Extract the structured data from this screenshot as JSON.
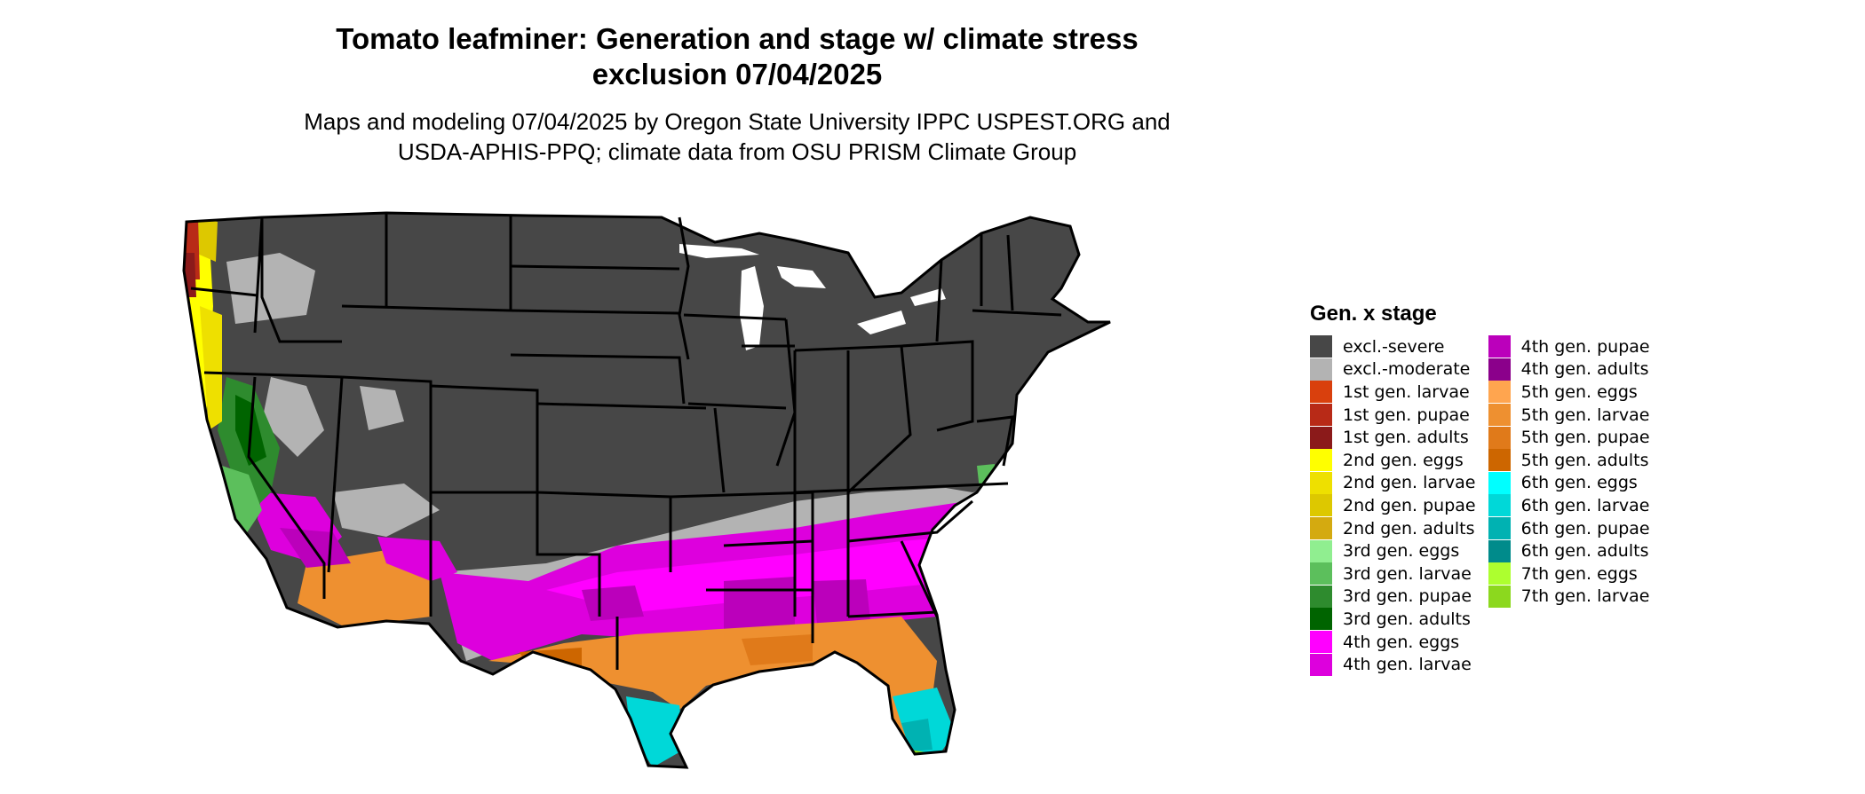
{
  "title": {
    "line1": "Tomato leafminer: Generation and stage w/ climate stress",
    "line2": "exclusion 07/04/2025"
  },
  "subtitle": {
    "line1": "Maps and modeling 07/04/2025 by Oregon State University IPPC USPEST.ORG and",
    "line2": "USDA-APHIS-PPQ; climate data from OSU PRISM Climate Group"
  },
  "legend": {
    "title": "Gen. x stage",
    "items": [
      {
        "label": "excl.-severe",
        "color": "#474747"
      },
      {
        "label": "excl.-moderate",
        "color": "#b3b3b3"
      },
      {
        "label": "1st gen. larvae",
        "color": "#d9400d"
      },
      {
        "label": "1st gen. pupae",
        "color": "#b82a17"
      },
      {
        "label": "1st gen. adults",
        "color": "#8b1a1a"
      },
      {
        "label": "2nd gen. eggs",
        "color": "#ffff00"
      },
      {
        "label": "2nd gen. larvae",
        "color": "#eee000"
      },
      {
        "label": "2nd gen. pupae",
        "color": "#ddc800"
      },
      {
        "label": "2nd gen. adults",
        "color": "#d4aa10"
      },
      {
        "label": "3rd gen. eggs",
        "color": "#90ee90"
      },
      {
        "label": "3rd gen. larvae",
        "color": "#5cbf5c"
      },
      {
        "label": "3rd gen. pupae",
        "color": "#2e8b2e"
      },
      {
        "label": "3rd gen. adults",
        "color": "#006400"
      },
      {
        "label": "4th gen. eggs",
        "color": "#ff00ff"
      },
      {
        "label": "4th gen. larvae",
        "color": "#dd00dd"
      },
      {
        "label": "4th gen. pupae",
        "color": "#bb00bb"
      },
      {
        "label": "4th gen. adults",
        "color": "#8b008b"
      },
      {
        "label": "5th gen. eggs",
        "color": "#ffa54f"
      },
      {
        "label": "5th gen. larvae",
        "color": "#ee9030"
      },
      {
        "label": "5th gen. pupae",
        "color": "#e07a1a"
      },
      {
        "label": "5th gen. adults",
        "color": "#cd6600"
      },
      {
        "label": "6th gen. eggs",
        "color": "#00ffff"
      },
      {
        "label": "6th gen. larvae",
        "color": "#00d8d8"
      },
      {
        "label": "6th gen. pupae",
        "color": "#00b2b2"
      },
      {
        "label": "6th gen. adults",
        "color": "#008b8b"
      },
      {
        "label": "7th gen. eggs",
        "color": "#adff2f"
      },
      {
        "label": "7th gen. larvae",
        "color": "#8cd81e"
      }
    ]
  }
}
